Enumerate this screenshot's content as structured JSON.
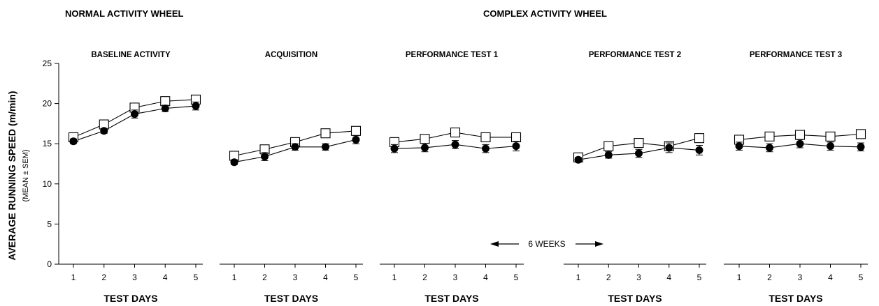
{
  "headers": {
    "left": "NORMAL ACTIVITY WHEEL",
    "right": "COMPLEX ACTIVITY WHEEL"
  },
  "y_axis": {
    "label": "AVERAGE RUNNING SPEED (m/min)",
    "sublabel": "(MEAN ± SEM)"
  },
  "annotation": {
    "text": "6 WEEKS"
  },
  "chart_data": [
    {
      "type": "line",
      "title": "BASELINE ACTIVITY",
      "xlabel": "TEST DAYS",
      "ylabel": "AVERAGE RUNNING SPEED (m/min)",
      "ylim": [
        0,
        25
      ],
      "yticks": [
        0,
        5,
        10,
        15,
        20,
        25
      ],
      "x": [
        1,
        2,
        3,
        4,
        5
      ],
      "series": [
        {
          "marker": "open-square",
          "values": [
            15.8,
            17.4,
            19.5,
            20.3,
            20.5
          ],
          "err": [
            0.2,
            0.3,
            0.3,
            0.3,
            0.3
          ]
        },
        {
          "marker": "filled-circle",
          "values": [
            15.3,
            16.6,
            18.7,
            19.4,
            19.7
          ],
          "err": [
            0.3,
            0.3,
            0.5,
            0.4,
            0.5
          ]
        }
      ]
    },
    {
      "type": "line",
      "title": "ACQUISITION",
      "xlabel": "TEST DAYS",
      "ylim": [
        0,
        25
      ],
      "x": [
        1,
        2,
        3,
        4,
        5
      ],
      "series": [
        {
          "marker": "open-square",
          "values": [
            13.5,
            14.3,
            15.2,
            16.3,
            16.6
          ],
          "err": [
            0.2,
            0.2,
            0.2,
            0.2,
            0.2
          ]
        },
        {
          "marker": "filled-circle",
          "values": [
            12.7,
            13.4,
            14.6,
            14.6,
            15.5
          ],
          "err": [
            0.3,
            0.5,
            0.4,
            0.4,
            0.5
          ]
        }
      ]
    },
    {
      "type": "line",
      "title": "PERFORMANCE TEST 1",
      "xlabel": "TEST DAYS",
      "ylim": [
        0,
        25
      ],
      "x": [
        1,
        2,
        3,
        4,
        5
      ],
      "series": [
        {
          "marker": "open-square",
          "values": [
            15.2,
            15.6,
            16.4,
            15.8,
            15.8
          ],
          "err": [
            0.2,
            0.2,
            0.2,
            0.2,
            0.2
          ]
        },
        {
          "marker": "filled-circle",
          "values": [
            14.4,
            14.5,
            14.9,
            14.4,
            14.7
          ],
          "err": [
            0.5,
            0.5,
            0.5,
            0.5,
            0.6
          ]
        }
      ]
    },
    {
      "type": "line",
      "title": "PERFORMANCE TEST 2",
      "xlabel": "TEST DAYS",
      "ylim": [
        0,
        25
      ],
      "x": [
        1,
        2,
        3,
        4,
        5
      ],
      "series": [
        {
          "marker": "open-square",
          "values": [
            13.3,
            14.7,
            15.1,
            14.7,
            15.7
          ],
          "err": [
            0.2,
            0.2,
            0.2,
            0.2,
            0.2
          ]
        },
        {
          "marker": "filled-circle",
          "values": [
            13.0,
            13.6,
            13.8,
            14.5,
            14.2
          ],
          "err": [
            0.3,
            0.4,
            0.5,
            0.6,
            0.6
          ]
        }
      ]
    },
    {
      "type": "line",
      "title": "PERFORMANCE TEST 3",
      "xlabel": "TEST DAYS",
      "ylim": [
        0,
        25
      ],
      "x": [
        1,
        2,
        3,
        4,
        5
      ],
      "series": [
        {
          "marker": "open-square",
          "values": [
            15.5,
            15.9,
            16.1,
            15.9,
            16.2
          ],
          "err": [
            0.2,
            0.2,
            0.2,
            0.2,
            0.2
          ]
        },
        {
          "marker": "filled-circle",
          "values": [
            14.7,
            14.5,
            15.0,
            14.7,
            14.6
          ],
          "err": [
            0.5,
            0.5,
            0.5,
            0.5,
            0.5
          ]
        }
      ]
    }
  ]
}
